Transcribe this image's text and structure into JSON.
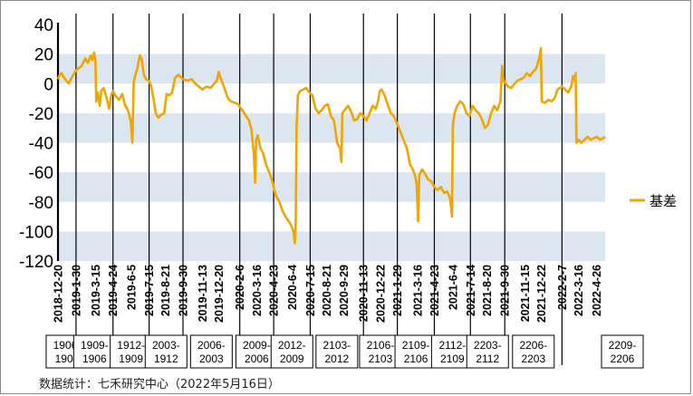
{
  "chart_data": {
    "type": "line",
    "ylim": [
      -120,
      40
    ],
    "yticks": [
      40,
      20,
      0,
      -20,
      -40,
      -60,
      -80,
      -100,
      -120
    ],
    "x_start": "2018-12-20",
    "x_end": "2022-05-16",
    "xticks": [
      "2018-12-20",
      "2019-1-30",
      "2019-3-15",
      "2019-4-24",
      "2019-6-5",
      "2019-7-15",
      "2019-8-21",
      "2019-9-30",
      "2019-11-13",
      "2019-12-20",
      "2020-2-6",
      "2020-3-16",
      "2020-4-23",
      "2020-6-4",
      "2020-7-15",
      "2020-8-21",
      "2020-9-29",
      "2020-11-13",
      "2020-12-22",
      "2021-1-29",
      "2021-3-16",
      "2021-4-23",
      "2021-6-4",
      "2021-7-14",
      "2021-8-20",
      "2021-9-30",
      "2021-11-15",
      "2021-12-22",
      "2022-2-7",
      "2022-3-16",
      "2022-4-26"
    ],
    "bands": [
      [
        20,
        0
      ],
      [
        -20,
        -40
      ],
      [
        -60,
        -80
      ],
      [
        -100,
        -120
      ]
    ],
    "band_color": "#dce6f1",
    "line_color": "#f0a500",
    "legend": {
      "label": "基差",
      "position": "right"
    },
    "contract_markers": [
      "2019-1-30",
      "2019-4-24",
      "2019-7-15",
      "2019-9-30",
      "2020-2-6",
      "2020-4-23",
      "2020-7-15",
      "2020-11-13",
      "2021-1-29",
      "2021-4-23",
      "2021-7-14",
      "2021-9-30",
      "2022-2-7"
    ],
    "contracts": [
      {
        "label": "1906-\n1903",
        "start": "2018-12-20",
        "end": "2019-1-30"
      },
      {
        "label": "1909-\n1906",
        "start": "2019-1-30",
        "end": "2019-4-24"
      },
      {
        "label": "1912-\n1909",
        "start": "2019-4-24",
        "end": "2019-7-15"
      },
      {
        "label": "2003-\n1912",
        "start": "2019-7-15",
        "end": "2019-9-30"
      },
      {
        "label": "2006-\n2003",
        "start": "2019-9-30",
        "end": "2020-2-6"
      },
      {
        "label": "2009-\n2006",
        "start": "2020-2-6",
        "end": "2020-4-23"
      },
      {
        "label": "2012-\n2009",
        "start": "2020-4-23",
        "end": "2020-7-15"
      },
      {
        "label": "2103-\n2012",
        "start": "2020-7-15",
        "end": "2020-11-13"
      },
      {
        "label": "2106-\n2103",
        "start": "2020-11-13",
        "end": "2021-1-29"
      },
      {
        "label": "2109-\n2106",
        "start": "2021-1-29",
        "end": "2021-4-23"
      },
      {
        "label": "2112-\n2109",
        "start": "2021-4-23",
        "end": "2021-7-14"
      },
      {
        "label": "2203-\n2112",
        "start": "2021-7-14",
        "end": "2021-9-30"
      },
      {
        "label": "2206-\n2203",
        "start": "2021-9-30",
        "end": "2022-2-7"
      },
      {
        "label": "2209-\n2206",
        "start": "2022-2-7",
        "end": "2022-5-16"
      }
    ],
    "series": [
      {
        "name": "基差",
        "points": [
          [
            "2018-12-20",
            3
          ],
          [
            "2018-12-24",
            6
          ],
          [
            "2018-12-28",
            7
          ],
          [
            "2019-1-3",
            4
          ],
          [
            "2019-1-8",
            2
          ],
          [
            "2019-1-14",
            0
          ],
          [
            "2019-1-18",
            3
          ],
          [
            "2019-1-24",
            6
          ],
          [
            "2019-1-30",
            9
          ],
          [
            "2019-2-12",
            12
          ],
          [
            "2019-2-20",
            17
          ],
          [
            "2019-2-26",
            14
          ],
          [
            "2019-3-4",
            19
          ],
          [
            "2019-3-8",
            16
          ],
          [
            "2019-3-12",
            21
          ],
          [
            "2019-3-15",
            16
          ],
          [
            "2019-3-17",
            -12
          ],
          [
            "2019-3-20",
            -6
          ],
          [
            "2019-3-25",
            -15
          ],
          [
            "2019-3-28",
            -5
          ],
          [
            "2019-4-3",
            -3
          ],
          [
            "2019-4-10",
            -10
          ],
          [
            "2019-4-15",
            -17
          ],
          [
            "2019-4-20",
            -8
          ],
          [
            "2019-4-24",
            -5
          ],
          [
            "2019-4-29",
            -8
          ],
          [
            "2019-5-8",
            -11
          ],
          [
            "2019-5-15",
            -7
          ],
          [
            "2019-5-22",
            -15
          ],
          [
            "2019-5-28",
            -18
          ],
          [
            "2019-6-3",
            -25
          ],
          [
            "2019-6-7",
            -40
          ],
          [
            "2019-6-10",
            1
          ],
          [
            "2019-6-14",
            6
          ],
          [
            "2019-6-18",
            10
          ],
          [
            "2019-6-24",
            19
          ],
          [
            "2019-6-28",
            17
          ],
          [
            "2019-7-3",
            6
          ],
          [
            "2019-7-8",
            3
          ],
          [
            "2019-7-15",
            2
          ],
          [
            "2019-7-20",
            -2
          ],
          [
            "2019-7-25",
            -10
          ],
          [
            "2019-7-30",
            -20
          ],
          [
            "2019-8-5",
            -23
          ],
          [
            "2019-8-12",
            -21
          ],
          [
            "2019-8-18",
            -20
          ],
          [
            "2019-8-24",
            -7
          ],
          [
            "2019-8-30",
            -8
          ],
          [
            "2019-9-5",
            -6
          ],
          [
            "2019-9-12",
            4
          ],
          [
            "2019-9-20",
            6
          ],
          [
            "2019-9-30",
            3
          ],
          [
            "2019-10-10",
            2
          ],
          [
            "2019-10-20",
            3
          ],
          [
            "2019-10-28",
            0
          ],
          [
            "2019-11-5",
            -2
          ],
          [
            "2019-11-13",
            -4
          ],
          [
            "2019-11-22",
            -2
          ],
          [
            "2019-12-2",
            -3
          ],
          [
            "2019-12-10",
            0
          ],
          [
            "2019-12-16",
            2
          ],
          [
            "2019-12-20",
            8
          ],
          [
            "2019-12-23",
            5
          ],
          [
            "2020-1-2",
            -3
          ],
          [
            "2020-1-10",
            -10
          ],
          [
            "2020-1-17",
            -12
          ],
          [
            "2020-2-3",
            -14
          ],
          [
            "2020-2-6",
            -16
          ],
          [
            "2020-2-12",
            -18
          ],
          [
            "2020-2-20",
            -22
          ],
          [
            "2020-2-27",
            -25
          ],
          [
            "2020-3-4",
            -32
          ],
          [
            "2020-3-9",
            -48
          ],
          [
            "2020-3-12",
            -67
          ],
          [
            "2020-3-14",
            -38
          ],
          [
            "2020-3-18",
            -35
          ],
          [
            "2020-3-24",
            -44
          ],
          [
            "2020-3-30",
            -47
          ],
          [
            "2020-4-6",
            -55
          ],
          [
            "2020-4-13",
            -60
          ],
          [
            "2020-4-20",
            -66
          ],
          [
            "2020-4-27",
            -75
          ],
          [
            "2020-5-6",
            -80
          ],
          [
            "2020-5-13",
            -86
          ],
          [
            "2020-5-20",
            -90
          ],
          [
            "2020-5-27",
            -93
          ],
          [
            "2020-6-2",
            -96
          ],
          [
            "2020-6-7",
            -100
          ],
          [
            "2020-6-10",
            -108
          ],
          [
            "2020-6-12",
            -95
          ],
          [
            "2020-6-14",
            -30
          ],
          [
            "2020-6-17",
            -8
          ],
          [
            "2020-6-22",
            -5
          ],
          [
            "2020-6-29",
            -4
          ],
          [
            "2020-7-6",
            -3
          ],
          [
            "2020-7-13",
            -6
          ],
          [
            "2020-7-20",
            -8
          ],
          [
            "2020-7-27",
            -17
          ],
          [
            "2020-8-3",
            -20
          ],
          [
            "2020-8-10",
            -18
          ],
          [
            "2020-8-17",
            -15
          ],
          [
            "2020-8-24",
            -14
          ],
          [
            "2020-8-31",
            -22
          ],
          [
            "2020-9-7",
            -25
          ],
          [
            "2020-9-14",
            -40
          ],
          [
            "2020-9-21",
            -44
          ],
          [
            "2020-9-24",
            -53
          ],
          [
            "2020-9-26",
            -20
          ],
          [
            "2020-10-9",
            -15
          ],
          [
            "2020-10-16",
            -19
          ],
          [
            "2020-10-23",
            -25
          ],
          [
            "2020-10-30",
            -24
          ],
          [
            "2020-11-6",
            -20
          ],
          [
            "2020-11-13",
            -22
          ],
          [
            "2020-11-20",
            -25
          ],
          [
            "2020-11-27",
            -20
          ],
          [
            "2020-12-4",
            -15
          ],
          [
            "2020-12-11",
            -17
          ],
          [
            "2020-12-16",
            -12
          ],
          [
            "2020-12-20",
            -5
          ],
          [
            "2020-12-24",
            -4
          ],
          [
            "2020-12-31",
            -8
          ],
          [
            "2021-1-7",
            -14
          ],
          [
            "2021-1-14",
            -20
          ],
          [
            "2021-1-21",
            -22
          ],
          [
            "2021-1-28",
            -27
          ],
          [
            "2021-2-4",
            -32
          ],
          [
            "2021-2-12",
            -38
          ],
          [
            "2021-2-20",
            -44
          ],
          [
            "2021-2-27",
            -55
          ],
          [
            "2021-3-5",
            -58
          ],
          [
            "2021-3-10",
            -62
          ],
          [
            "2021-3-14",
            -68
          ],
          [
            "2021-3-17",
            -93
          ],
          [
            "2021-3-20",
            -62
          ],
          [
            "2021-3-26",
            -58
          ],
          [
            "2021-4-2",
            -61
          ],
          [
            "2021-4-9",
            -65
          ],
          [
            "2021-4-16",
            -66
          ],
          [
            "2021-4-23",
            -70
          ],
          [
            "2021-4-30",
            -72
          ],
          [
            "2021-5-8",
            -70
          ],
          [
            "2021-5-15",
            -74
          ],
          [
            "2021-5-22",
            -73
          ],
          [
            "2021-5-29",
            -78
          ],
          [
            "2021-6-2",
            -90
          ],
          [
            "2021-6-4",
            -28
          ],
          [
            "2021-6-8",
            -20
          ],
          [
            "2021-6-14",
            -15
          ],
          [
            "2021-6-21",
            -12
          ],
          [
            "2021-6-28",
            -14
          ],
          [
            "2021-7-5",
            -20
          ],
          [
            "2021-7-12",
            -22
          ],
          [
            "2021-7-19",
            -15
          ],
          [
            "2021-7-26",
            -18
          ],
          [
            "2021-8-2",
            -20
          ],
          [
            "2021-8-9",
            -24
          ],
          [
            "2021-8-16",
            -30
          ],
          [
            "2021-8-23",
            -28
          ],
          [
            "2021-8-30",
            -20
          ],
          [
            "2021-9-6",
            -15
          ],
          [
            "2021-9-13",
            -18
          ],
          [
            "2021-9-20",
            -12
          ],
          [
            "2021-9-24",
            12
          ],
          [
            "2021-9-27",
            2
          ],
          [
            "2021-10-8",
            -2
          ],
          [
            "2021-10-15",
            -3
          ],
          [
            "2021-10-22",
            0
          ],
          [
            "2021-10-29",
            2
          ],
          [
            "2021-11-5",
            3
          ],
          [
            "2021-11-12",
            4
          ],
          [
            "2021-11-19",
            7
          ],
          [
            "2021-11-26",
            5
          ],
          [
            "2021-12-3",
            8
          ],
          [
            "2021-12-10",
            10
          ],
          [
            "2021-12-14",
            14
          ],
          [
            "2021-12-18",
            18
          ],
          [
            "2021-12-21",
            24
          ],
          [
            "2021-12-23",
            -12
          ],
          [
            "2021-12-30",
            -13
          ],
          [
            "2022-1-7",
            -11
          ],
          [
            "2022-1-14",
            -12
          ],
          [
            "2022-1-21",
            -10
          ],
          [
            "2022-1-28",
            -4
          ],
          [
            "2022-2-7",
            -2
          ],
          [
            "2022-2-14",
            -4
          ],
          [
            "2022-2-21",
            -6
          ],
          [
            "2022-2-28",
            -2
          ],
          [
            "2022-3-4",
            5
          ],
          [
            "2022-3-8",
            2
          ],
          [
            "2022-3-10",
            7
          ],
          [
            "2022-3-12",
            -40
          ],
          [
            "2022-3-16",
            -38
          ],
          [
            "2022-3-23",
            -40
          ],
          [
            "2022-3-30",
            -38
          ],
          [
            "2022-4-6",
            -36
          ],
          [
            "2022-4-13",
            -38
          ],
          [
            "2022-4-20",
            -37
          ],
          [
            "2022-4-27",
            -36
          ],
          [
            "2022-5-4",
            -38
          ],
          [
            "2022-5-11",
            -37
          ],
          [
            "2022-5-16",
            -36
          ]
        ]
      }
    ]
  },
  "source": "数据统计：七禾研究中心（2022年5月16日）"
}
